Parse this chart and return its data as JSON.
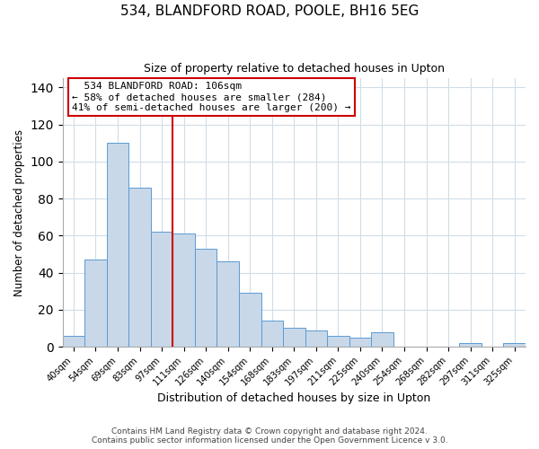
{
  "title": "534, BLANDFORD ROAD, POOLE, BH16 5EG",
  "subtitle": "Size of property relative to detached houses in Upton",
  "xlabel": "Distribution of detached houses by size in Upton",
  "ylabel": "Number of detached properties",
  "bar_labels": [
    "40sqm",
    "54sqm",
    "69sqm",
    "83sqm",
    "97sqm",
    "111sqm",
    "126sqm",
    "140sqm",
    "154sqm",
    "168sqm",
    "183sqm",
    "197sqm",
    "211sqm",
    "225sqm",
    "240sqm",
    "254sqm",
    "268sqm",
    "282sqm",
    "297sqm",
    "311sqm",
    "325sqm"
  ],
  "bar_values": [
    6,
    47,
    110,
    86,
    62,
    61,
    53,
    46,
    29,
    14,
    10,
    9,
    6,
    5,
    8,
    0,
    0,
    0,
    2,
    0,
    2
  ],
  "bar_color": "#c8d8e8",
  "bar_edge_color": "#5b9bd5",
  "vline_x": 4.5,
  "vline_color": "#cc0000",
  "ylim": [
    0,
    145
  ],
  "yticks": [
    0,
    20,
    40,
    60,
    80,
    100,
    120,
    140
  ],
  "annotation_title": "534 BLANDFORD ROAD: 106sqm",
  "annotation_line1": "← 58% of detached houses are smaller (284)",
  "annotation_line2": "41% of semi-detached houses are larger (200) →",
  "annotation_box_color": "#ffffff",
  "annotation_box_edge": "#cc0000",
  "footer1": "Contains HM Land Registry data © Crown copyright and database right 2024.",
  "footer2": "Contains public sector information licensed under the Open Government Licence v 3.0.",
  "background_color": "#ffffff",
  "grid_color": "#d0dde8"
}
